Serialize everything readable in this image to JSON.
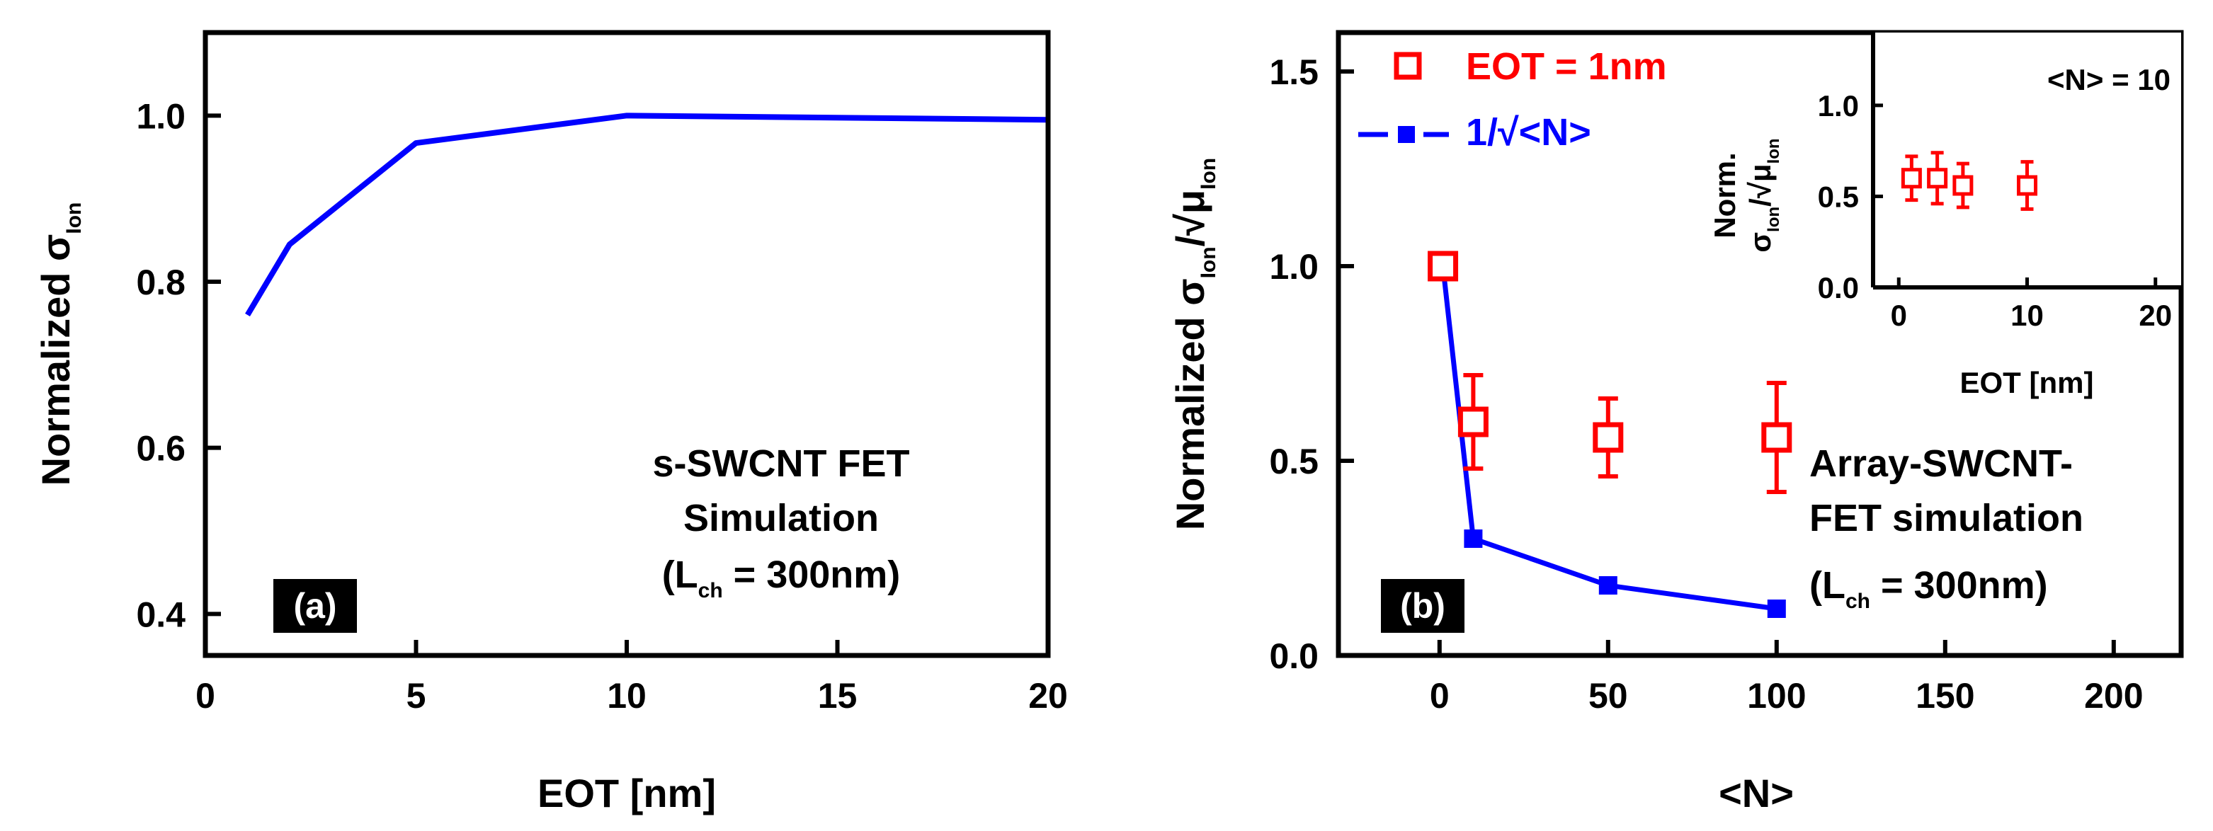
{
  "chart_data": [
    {
      "panel": "a",
      "type": "line",
      "panel_label": "(a)",
      "xlabel": "EOT [nm]",
      "ylabel_main": "Normalized σ",
      "ylabel_sub": "Ion",
      "xlim": [
        0,
        20
      ],
      "ylim": [
        0.35,
        1.1
      ],
      "xticks": [
        0,
        5,
        10,
        15,
        20
      ],
      "xtick_labels": [
        "0",
        "5",
        "10",
        "15",
        "20"
      ],
      "yticks": [
        0.4,
        0.6,
        0.8,
        1.0
      ],
      "ytick_labels": [
        "0.4",
        "0.6",
        "0.8",
        "1.0"
      ],
      "series": [
        {
          "name": "simulation",
          "color": "#0000ff",
          "x": [
            1,
            2,
            5,
            10,
            20
          ],
          "y": [
            0.76,
            0.845,
            0.967,
            1.0,
            0.995
          ]
        }
      ],
      "annotation": {
        "line1": "s-SWCNT FET",
        "line2": "Simulation",
        "line3_pre": "(L",
        "line3_sub": "ch",
        "line3_post": " = 300nm)"
      }
    },
    {
      "panel": "b",
      "type": "scatter",
      "panel_label": "(b)",
      "xlabel": "<N>",
      "ylabel_main": "Normalized σ",
      "ylabel_sub1": "Ion",
      "ylabel_mid": "/√μ",
      "ylabel_sub2": "Ion",
      "xlim": [
        -30,
        220
      ],
      "ylim": [
        0,
        1.6
      ],
      "xticks": [
        0,
        50,
        100,
        150,
        200
      ],
      "xtick_labels": [
        "0",
        "50",
        "100",
        "150",
        "200"
      ],
      "yticks": [
        0.0,
        0.5,
        1.0,
        1.5
      ],
      "ytick_labels": [
        "0.0",
        "0.5",
        "1.0",
        "1.5"
      ],
      "series": [
        {
          "name": "EOT = 1nm",
          "color": "#ff0000",
          "marker": "open-square",
          "x": [
            1,
            10,
            50,
            100
          ],
          "y": [
            1.0,
            0.6,
            0.56,
            0.56
          ],
          "err": [
            0,
            0.12,
            0.1,
            0.14
          ]
        },
        {
          "name": "1/√<N>",
          "color": "#0000ff",
          "marker": "filled-square",
          "x": [
            1,
            10,
            50,
            100
          ],
          "y": [
            1.0,
            0.3,
            0.18,
            0.12
          ]
        }
      ],
      "legend": [
        "EOT = 1nm",
        "1/√<N>"
      ],
      "annotation": {
        "line1": "Array-SWCNT-",
        "line2": "FET simulation",
        "line3_pre": "(L",
        "line3_sub": "ch",
        "line3_post": " = 300nm)"
      },
      "inset": {
        "type": "scatter",
        "title": "<N> = 10",
        "xlabel": "EOT [nm]",
        "ylabel_line1": "Norm.",
        "ylabel_line2_pre": "σ",
        "ylabel_sub1": "Ion",
        "ylabel_mid": "/√μ",
        "ylabel_sub2": "Ion",
        "xlim": [
          -2,
          22
        ],
        "ylim": [
          0,
          1.4
        ],
        "xticks": [
          0,
          10,
          20
        ],
        "xtick_labels": [
          "0",
          "10",
          "20"
        ],
        "yticks": [
          0.0,
          0.5,
          1.0
        ],
        "ytick_labels": [
          "0.0",
          "0.5",
          "1.0"
        ],
        "series": [
          {
            "name": "<N> = 10",
            "color": "#ff0000",
            "marker": "open-square",
            "x": [
              1,
              3,
              5,
              10
            ],
            "y": [
              0.6,
              0.6,
              0.56,
              0.56
            ],
            "err": [
              0.12,
              0.14,
              0.12,
              0.13
            ]
          }
        ]
      }
    }
  ]
}
